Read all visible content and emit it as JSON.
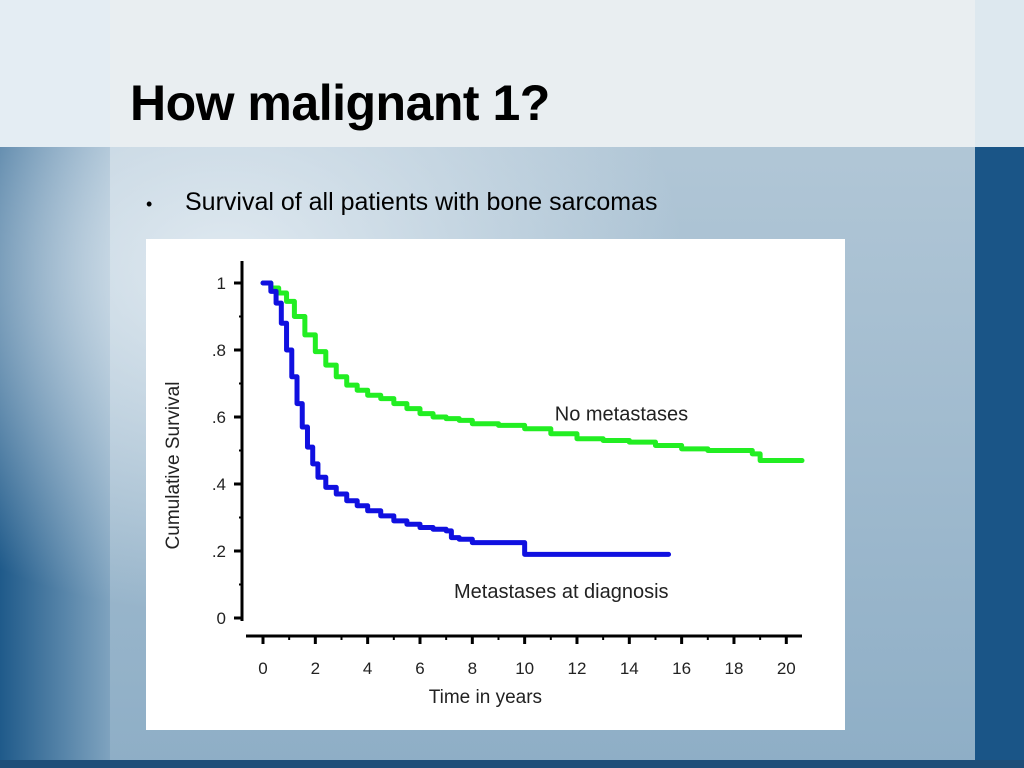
{
  "slide": {
    "title": "How malignant 1?",
    "bullet": "Survival of all patients with bone sarcomas"
  },
  "colors": {
    "no_metastases": "#22ee22",
    "metastases": "#1010e0",
    "axis": "#000000"
  },
  "chart_data": {
    "type": "line",
    "xlabel": "Time in years",
    "ylabel": "Cumulative Survival",
    "xlim": [
      0,
      20.6
    ],
    "ylim": [
      0,
      1
    ],
    "x_ticks": [
      0,
      2,
      4,
      6,
      8,
      10,
      12,
      14,
      16,
      18,
      20
    ],
    "x_tick_labels": [
      "0",
      "2",
      "4",
      "6",
      "8",
      "10",
      "12",
      "14",
      "16",
      "18",
      "20"
    ],
    "y_ticks": [
      0,
      0.2,
      0.4,
      0.6,
      0.8,
      1
    ],
    "y_tick_labels": [
      "0",
      ".2",
      ".4",
      ".6",
      ".8",
      "1"
    ],
    "grid": false,
    "series": [
      {
        "name": "No metastases",
        "color": "#22ee22",
        "x": [
          0,
          0.3,
          0.6,
          0.9,
          1.2,
          1.6,
          2.0,
          2.4,
          2.8,
          3.2,
          3.6,
          4.0,
          4.5,
          5.0,
          5.5,
          6.0,
          6.5,
          7.0,
          7.5,
          8.0,
          9.0,
          10.0,
          11.0,
          12.0,
          13.0,
          14.0,
          15.0,
          16.0,
          17.0,
          18.0,
          18.5,
          18.7,
          19.0,
          20.6
        ],
        "y": [
          1,
          0.985,
          0.97,
          0.945,
          0.9,
          0.845,
          0.795,
          0.755,
          0.72,
          0.695,
          0.68,
          0.665,
          0.655,
          0.64,
          0.625,
          0.61,
          0.6,
          0.595,
          0.59,
          0.58,
          0.575,
          0.565,
          0.55,
          0.535,
          0.53,
          0.525,
          0.515,
          0.505,
          0.5,
          0.5,
          0.5,
          0.49,
          0.47,
          0.47
        ]
      },
      {
        "name": "Metastases at diagnosis",
        "color": "#1010e0",
        "x": [
          0,
          0.3,
          0.5,
          0.7,
          0.9,
          1.1,
          1.3,
          1.5,
          1.7,
          1.9,
          2.1,
          2.4,
          2.8,
          3.2,
          3.6,
          4.0,
          4.5,
          5.0,
          5.5,
          6.0,
          6.5,
          7.0,
          7.2,
          7.5,
          8.0,
          8.5,
          9.0,
          9.5,
          9.99,
          10.0,
          15.5
        ],
        "y": [
          1,
          0.975,
          0.94,
          0.88,
          0.8,
          0.72,
          0.64,
          0.57,
          0.51,
          0.46,
          0.42,
          0.39,
          0.37,
          0.35,
          0.335,
          0.32,
          0.305,
          0.29,
          0.28,
          0.27,
          0.265,
          0.26,
          0.24,
          0.235,
          0.225,
          0.225,
          0.225,
          0.225,
          0.225,
          0.19,
          0.19
        ]
      }
    ],
    "annotations": [
      "No metastases",
      "Metastases at diagnosis"
    ]
  }
}
